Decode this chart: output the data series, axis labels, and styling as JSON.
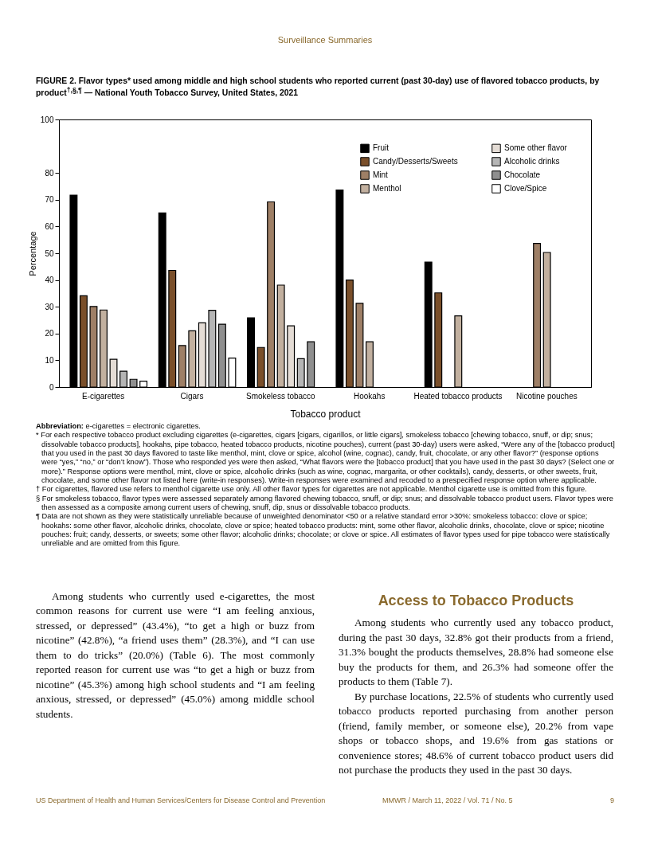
{
  "chart_data": {
    "type": "bar",
    "title": "FIGURE 2. Flavor types* used among middle and high school students who reported current (past 30-day) use of flavored tobacco products, by product$^{†,§,¶}$ — National Youth Tobacco Survey, United States, 2021",
    "xlabel": "Tobacco product",
    "ylabel": "Percentage",
    "categories": [
      "E-cigarettes",
      "Cigars",
      "Smokeless tobacco",
      "Hookahs",
      "Heated tobacco products",
      "Nicotine pouches"
    ],
    "series": [
      {
        "name": "Fruit",
        "color": "#000000",
        "values": [
          71.7,
          65.1,
          25.9,
          73.6,
          46.7,
          null
        ]
      },
      {
        "name": "Candy/Desserts/Sweets",
        "color": "#7a4f2a",
        "values": [
          34.1,
          43.6,
          14.8,
          40.0,
          35.2,
          null
        ]
      },
      {
        "name": "Mint",
        "color": "#9e7f66",
        "values": [
          30.1,
          15.5,
          69.2,
          31.3,
          null,
          53.7
        ]
      },
      {
        "name": "Menthol",
        "color": "#c2b09f",
        "values": [
          28.8,
          21.0,
          38.1,
          16.9,
          26.6,
          50.3
        ]
      },
      {
        "name": "Some other flavor",
        "color": "#e4dcd5",
        "values": [
          10.4,
          24.0,
          22.9,
          null,
          null,
          null
        ]
      },
      {
        "name": "Alcoholic drinks",
        "color": "#b5b5b5",
        "values": [
          5.9,
          28.7,
          10.6,
          null,
          null,
          null
        ]
      },
      {
        "name": "Chocolate",
        "color": "#8f8f8f",
        "values": [
          2.9,
          23.5,
          16.9,
          null,
          null,
          null
        ]
      },
      {
        "name": "Clove/Spice",
        "color": "#ffffff",
        "values": [
          2.2,
          10.8,
          null,
          null,
          null,
          null
        ]
      }
    ],
    "ylim": [
      0,
      100
    ],
    "yticks": [
      0,
      10,
      20,
      30,
      40,
      50,
      60,
      70,
      80,
      100
    ],
    "grid": false,
    "legend": "top right",
    "annotations": [
      "Surveillance Summaries",
      "Abbreviation: e-cigarettes = electronic cigarettes.",
      "* For each respective tobacco product excluding cigarettes (e-cigarettes, cigars [cigars, cigarillos, or little cigars], smokeless tobacco [chewing tobacco, snuff, or dip; snus; dissolvable tobacco products], hookahs, pipe tobacco, heated tobacco products, nicotine pouches), current (past 30-day) users were asked, “Were any of the [tobacco product] that you used in the past 30 days flavored to taste like menthol, mint, clove or spice, alcohol (wine, cognac), candy, fruit, chocolate, or any other flavor?” (response options were “yes,” “no,” or “don’t know”). Those who responded yes were then asked, “What flavors were the [tobacco product] that you have used in the past 30 days? (Select one or more).” Response options were menthol, mint, clove or spice, alcoholic drinks (such as wine, cognac, margarita, or other cocktails), candy, desserts, or other sweets, fruit, chocolate, and some other flavor not listed here (write-in responses). Write-in responses were examined and recoded to a prespecified response option where applicable.",
      "† For cigarettes, flavored use refers to menthol cigarette use only. All other flavor types for cigarettes are not applicable. Menthol cigarette use is omitted from this figure.",
      "§ For smokeless tobacco, flavor types were assessed separately among flavored chewing tobacco, snuff, or dip; snus; and dissolvable tobacco product users. Flavor types were then assessed as a composite among current users of chewing, snuff, dip, snus or dissolvable tobacco products.",
      "¶ Data are not shown as they were statistically unreliable because of unweighted denominator <50 or a relative standard error >30%: smokeless tobacco: clove or spice; hookahs: some other flavor, alcoholic drinks, chocolate, clove or spice; heated tobacco products: mint, some other flavor, alcoholic drinks, chocolate, clove or spice; nicotine pouches: fruit; candy, desserts, or sweets; some other flavor; alcoholic drinks; chocolate; or clove or spice. All estimates of flavor types used for pipe tobacco were statistically unreliable and are omitted from this figure.",
      "Among students who currently used e-cigarettes, the most common reasons for current use were “I am feeling anxious, stressed, or depressed” (43.4%), “to get a high or buzz from nicotine” (42.8%), “a friend uses them” (28.3%), and “I can use them to do tricks” (20.0%) (Table 6). The most commonly reported reason for current use was “to get a high or buzz from nicotine” (45.3%) among high school students and “I am feeling anxious, stressed, or depressed” (45.0%) among middle school students.",
      "Access to Tobacco Products",
      "Among students who currently used any tobacco product, during the past 30 days, 32.8% got their products from a friend, 31.3% bought the products themselves, 28.8% had someone else buy the products for them, and 26.3% had someone offer the products to them (Table 7).",
      "By purchase locations, 22.5% of students who currently used tobacco products reported purchasing from another person (friend, family member, or someone else), 20.2% from vape shops or tobacco shops, and 19.6% from gas stations or convenience stores; 48.6% of current tobacco product users did not purchase the products they used in the past 30 days.",
      "US Department of Health and Human Services/Centers for Disease Control and Prevention",
      "MMWR / March 11, 2022 / Vol. 71 / No. 5",
      "9"
    ]
  }
}
